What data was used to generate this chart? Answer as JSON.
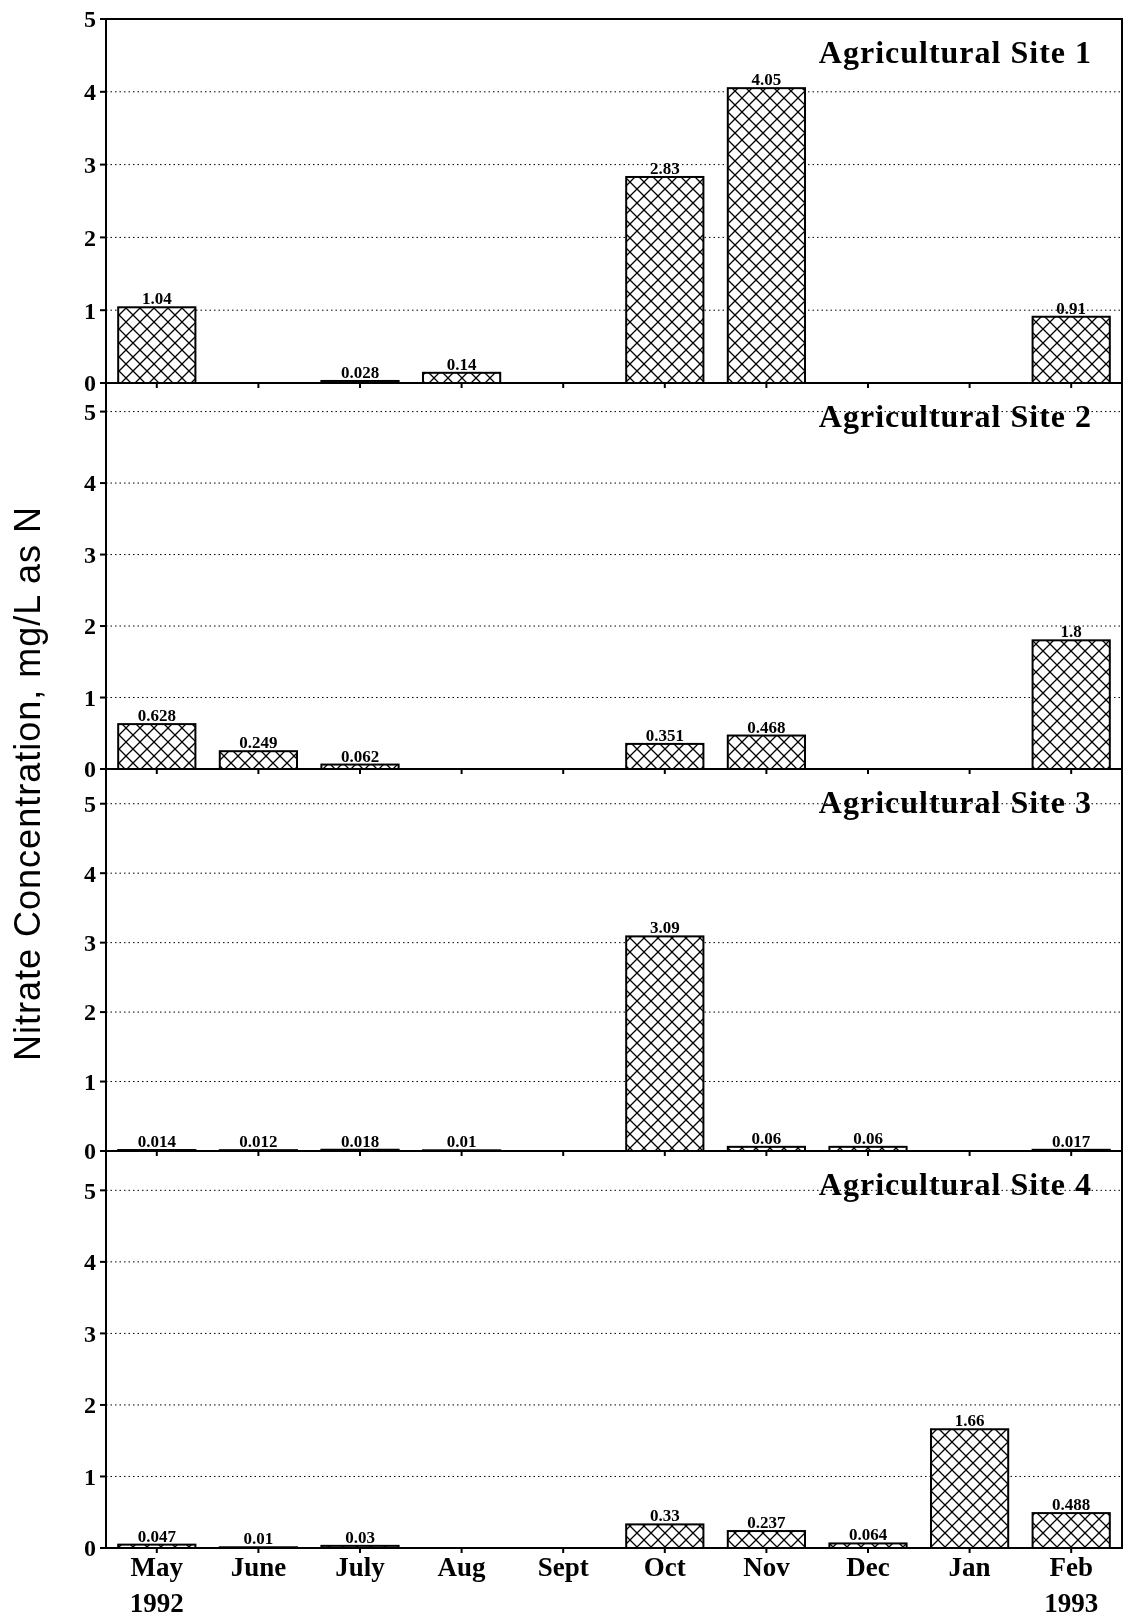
{
  "chart_data": [
    {
      "type": "bar",
      "title": "Agricultural Site 1",
      "ylabel": "Nitrate Concentration, mg/L as N",
      "categories": [
        null,
        null,
        null,
        null,
        null,
        null,
        null,
        null,
        null,
        null
      ],
      "values": [
        1.04,
        null,
        0.028,
        0.14,
        null,
        2.83,
        4.05,
        null,
        null,
        0.91
      ],
      "color": "#000000",
      "ylim": [
        0,
        5
      ],
      "yticks": [
        0,
        1,
        2,
        3,
        4,
        5
      ],
      "grid": "y",
      "data_labels": true,
      "tick_labels": "y"
    },
    {
      "type": "bar",
      "title": "Agricultural Site 2",
      "categories": [
        null,
        null,
        null,
        null,
        null,
        null,
        null,
        null,
        null,
        null
      ],
      "values": [
        0.628,
        0.249,
        0.062,
        null,
        null,
        0.351,
        0.468,
        null,
        null,
        1.8
      ],
      "color": "#000000",
      "ylim": [
        0,
        5.4
      ],
      "yticks": [
        0,
        1,
        2,
        3,
        4,
        5
      ],
      "grid": "y",
      "data_labels": true,
      "tick_labels": "y"
    },
    {
      "type": "bar",
      "title": "Agricultural Site 3",
      "categories": [
        null,
        null,
        null,
        null,
        null,
        null,
        null,
        null,
        null,
        null
      ],
      "values": [
        0.014,
        0.012,
        0.018,
        0.01,
        null,
        3.09,
        0.06,
        0.06,
        null,
        0.017
      ],
      "color": "#000000",
      "ylim": [
        0,
        5.5
      ],
      "yticks": [
        0,
        1,
        2,
        3,
        4,
        5
      ],
      "grid": "y",
      "data_labels": true,
      "tick_labels": "y"
    },
    {
      "type": "bar",
      "title": "Agricultural Site 4",
      "categories": [
        "May",
        "June",
        "July",
        "Aug",
        "Sept",
        "Oct",
        "Nov",
        "Dec",
        "Jan",
        "Feb"
      ],
      "values": [
        0.047,
        0.01,
        0.03,
        null,
        null,
        0.33,
        0.237,
        0.064,
        1.66,
        0.488
      ],
      "color": "#000000",
      "ylim": [
        0,
        5.55
      ],
      "yticks": [
        0,
        1,
        2,
        3,
        4,
        5
      ],
      "grid": "y",
      "data_labels": true,
      "annotations": [
        "1992",
        "1993"
      ]
    }
  ]
}
